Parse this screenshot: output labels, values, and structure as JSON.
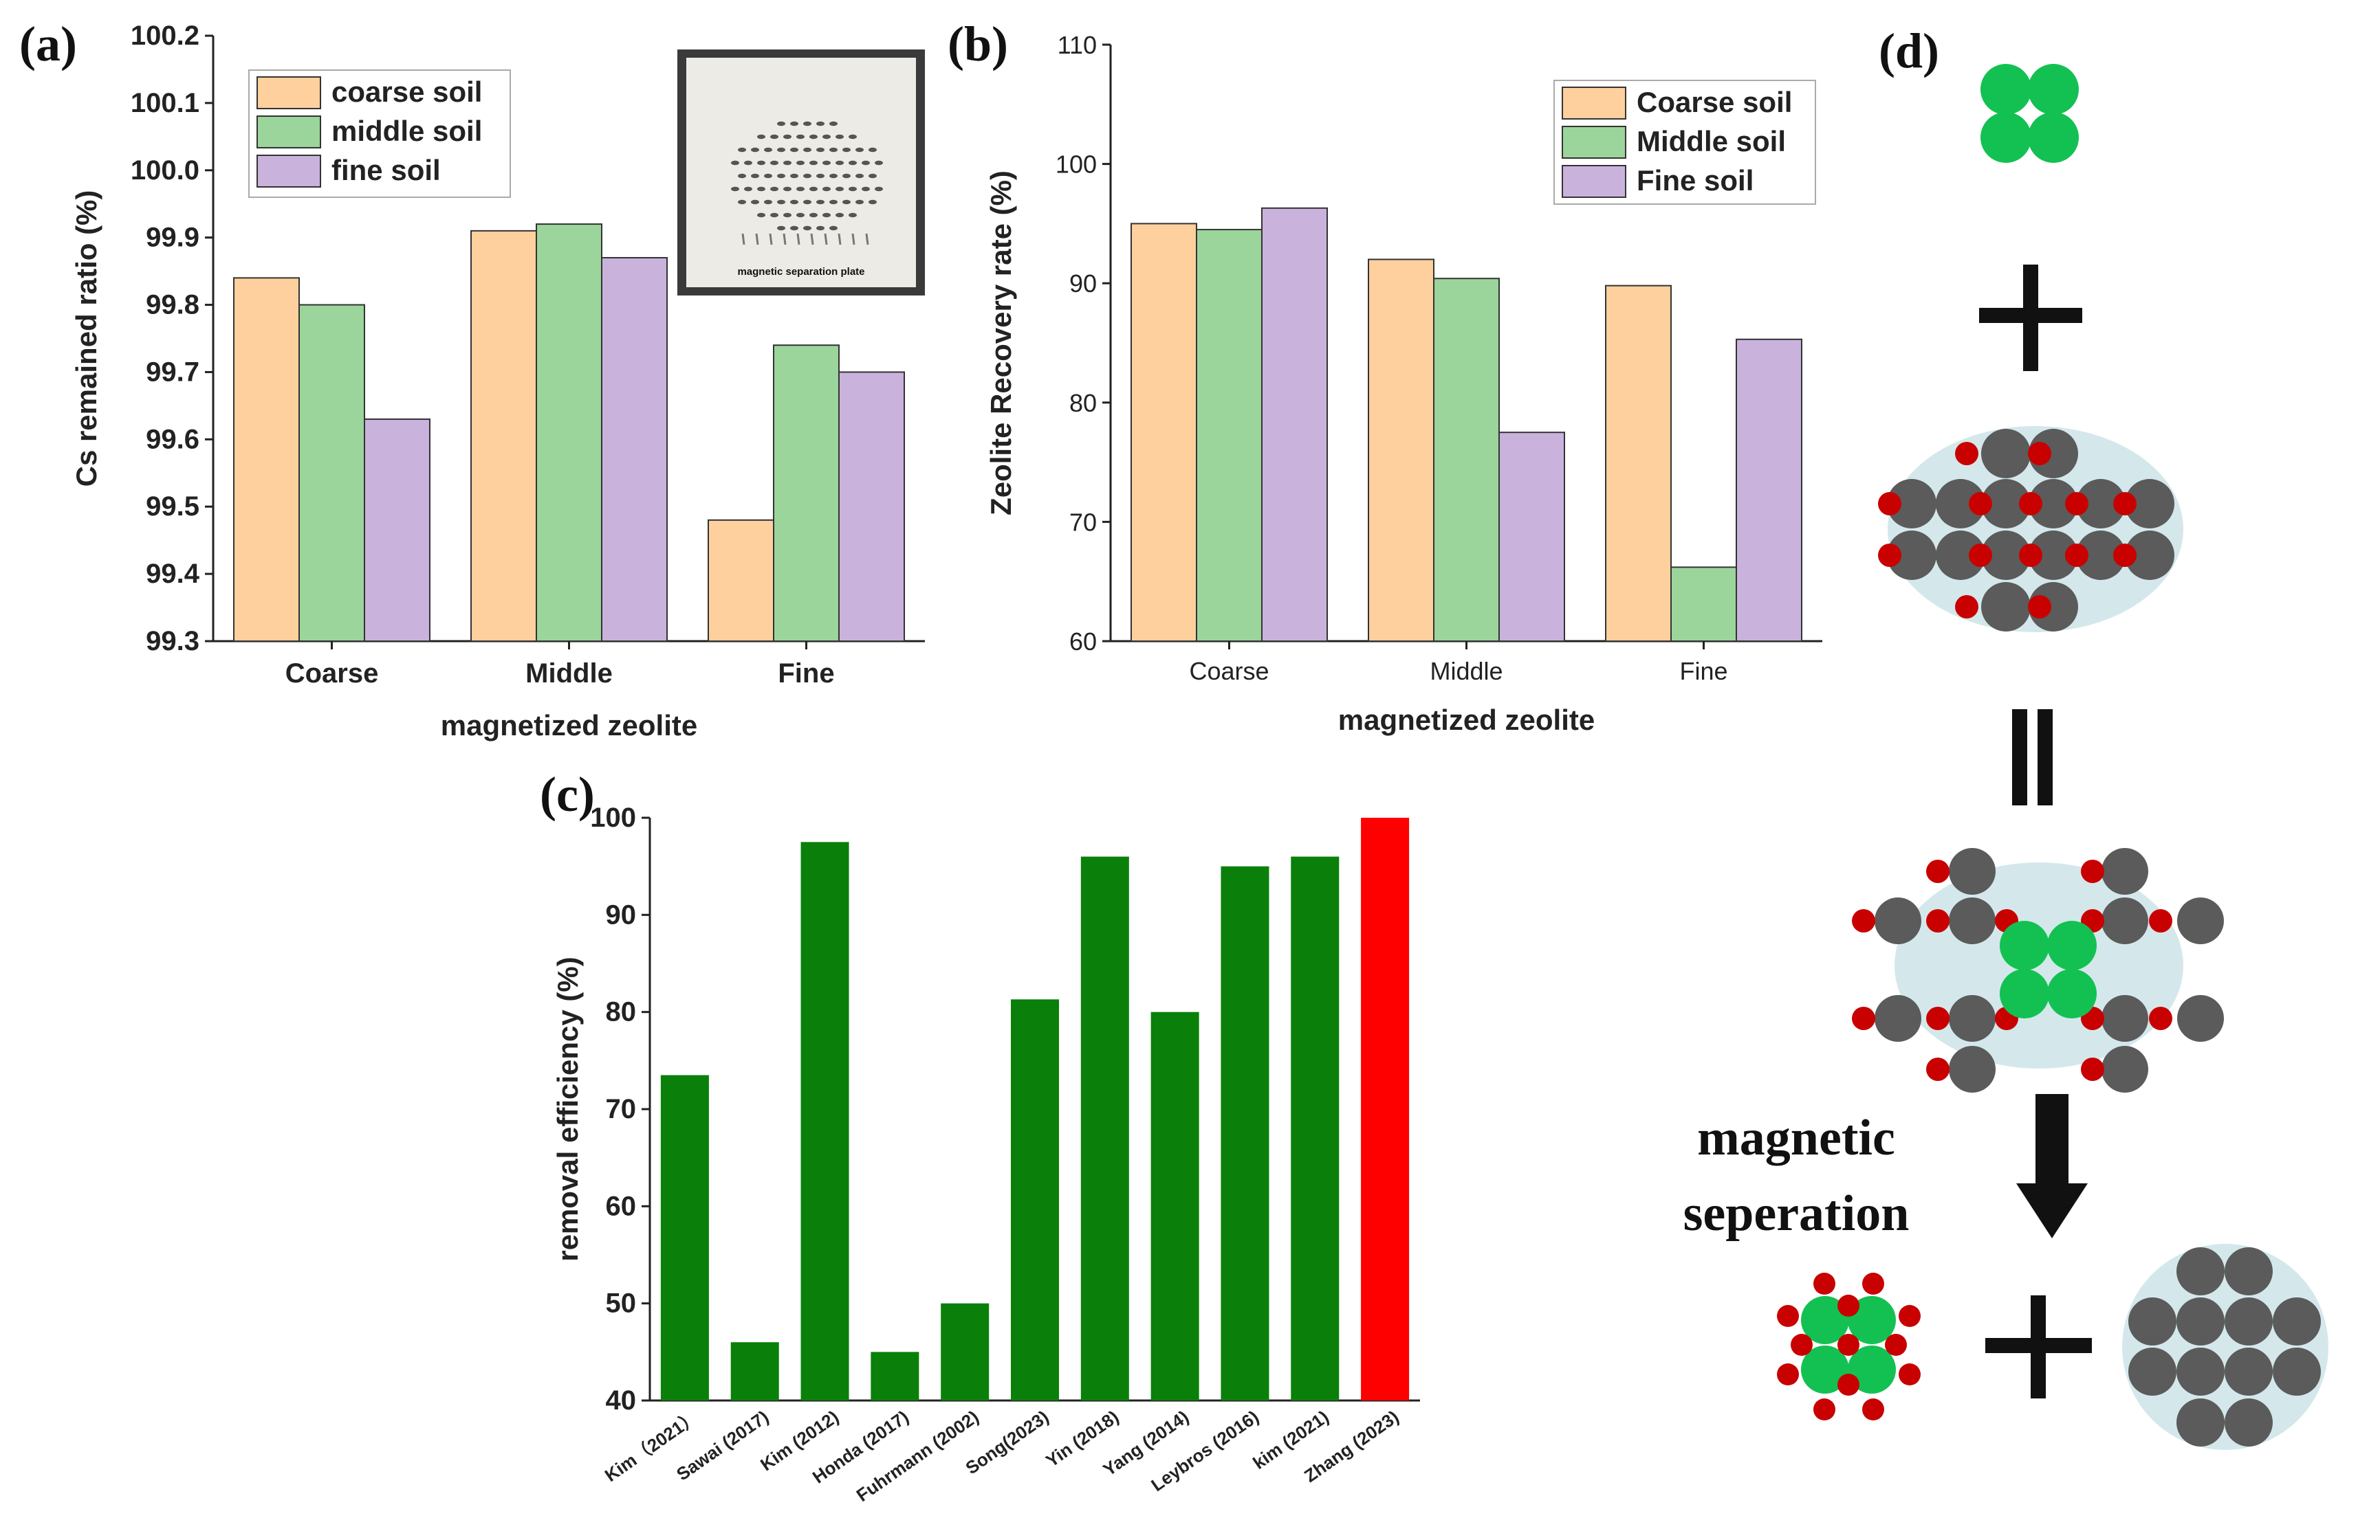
{
  "panels": {
    "a": "(a)",
    "b": "(b)",
    "c": "(c)",
    "d": "(d)"
  },
  "chart_data": [
    {
      "id": "a",
      "type": "bar",
      "xlabel": "magnetized zeolite",
      "ylabel": "Cs remained ratio (%)",
      "categories": [
        "Coarse",
        "Middle",
        "Fine"
      ],
      "ylim": [
        99.3,
        100.2
      ],
      "yticks": [
        "99.3",
        "99.4",
        "99.5",
        "99.6",
        "99.7",
        "99.8",
        "99.9",
        "100.0",
        "100.1",
        "100.2"
      ],
      "legend_position": "top-left",
      "series": [
        {
          "name": "coarse soil",
          "color": "#FDD09E",
          "values": [
            99.84,
            99.91,
            99.48
          ]
        },
        {
          "name": "middle soil",
          "color": "#9BD59B",
          "values": [
            99.8,
            99.92,
            99.74
          ]
        },
        {
          "name": "fine soil",
          "color": "#C9B3DC",
          "values": [
            99.63,
            99.87,
            99.7
          ]
        }
      ],
      "inset": {
        "caption": "magnetic separation plate"
      }
    },
    {
      "id": "b",
      "type": "bar",
      "xlabel": "magnetized zeolite",
      "ylabel": "Zeolite Recovery rate (%)",
      "categories": [
        "Coarse",
        "Middle",
        "Fine"
      ],
      "ylim": [
        60,
        110
      ],
      "yticks": [
        "60",
        "70",
        "80",
        "90",
        "100",
        "110"
      ],
      "legend_position": "top-right",
      "series": [
        {
          "name": "Coarse soil",
          "color": "#FDD09E",
          "values": [
            95.0,
            92.0,
            89.8
          ]
        },
        {
          "name": "Middle soil",
          "color": "#9BD59B",
          "values": [
            94.5,
            90.4,
            66.2
          ]
        },
        {
          "name": "Fine soil",
          "color": "#C9B3DC",
          "values": [
            96.3,
            77.5,
            85.3
          ]
        }
      ]
    },
    {
      "id": "c",
      "type": "bar",
      "xlabel": "",
      "ylabel": "removal efficiency (%)",
      "categories": [
        "Kim（2021）",
        "Sawai (2017)",
        "Kim (2012)",
        "Honda (2017)",
        "Fuhrmann (2002)",
        "Song(2023)",
        "Yin (2018)",
        "Yang (2014)",
        "Leybros (2016)",
        "kim (2021)",
        "Zhang (2023)"
      ],
      "values": [
        73.5,
        46,
        97.5,
        45,
        50,
        81.3,
        96,
        80,
        95,
        96,
        100
      ],
      "colors": [
        "#0A800A",
        "#0A800A",
        "#0A800A",
        "#0A800A",
        "#0A800A",
        "#0A800A",
        "#0A800A",
        "#0A800A",
        "#0A800A",
        "#0A800A",
        "#FF0000"
      ],
      "ylim": [
        40,
        100
      ],
      "yticks": [
        "40",
        "50",
        "60",
        "70",
        "80",
        "90",
        "100"
      ]
    }
  ],
  "diagram_d": {
    "label": "magnetic seperation",
    "label_lines": [
      "magnetic",
      "seperation"
    ],
    "colors": {
      "green": "#13C152",
      "grey": "#5B5B5B",
      "red": "#C80000",
      "halo": "#D4E8EC",
      "arrow": "#111111"
    }
  }
}
